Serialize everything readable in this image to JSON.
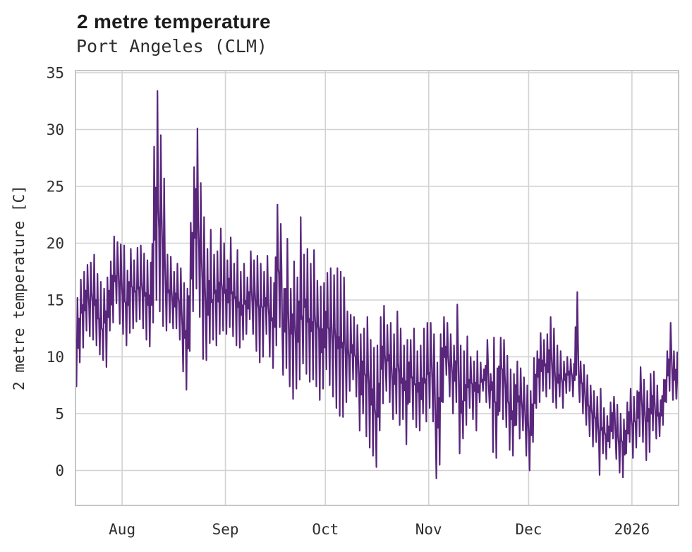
{
  "chart_data": {
    "type": "line",
    "title": "2 metre temperature",
    "subtitle": "Port Angeles (CLM)",
    "ylabel": "2 metre temperature [C]",
    "xlabel": "",
    "y_ticks": [
      0,
      5,
      10,
      15,
      20,
      25,
      30,
      35
    ],
    "x_tick_labels": [
      "Aug",
      "Sep",
      "Oct",
      "Nov",
      "Dec",
      "2026"
    ],
    "x_tick_days": [
      14,
      45,
      75,
      106,
      136,
      167
    ],
    "ylim": [
      -3.1,
      35.2
    ],
    "x_range_days": 181,
    "grid": true,
    "legend": "none",
    "line_color": "#59267c",
    "grid_color": "#d2d2d2",
    "frame_color": "#c7c7c7",
    "text_color": "#2e2e2e",
    "series_note": "hourly 2 m temperature, approximated here by daily min/max envelope, day 0 = mid-July, ticks mark month starts",
    "daily_min": [
      7.4,
      9.5,
      10.8,
      12.3,
      11.8,
      11.5,
      11.0,
      10.2,
      9.7,
      9.1,
      12.3,
      13.0,
      14.7,
      12.9,
      12.0,
      11.0,
      12.1,
      12.5,
      13.1,
      13.3,
      12.5,
      11.5,
      10.9,
      13.0,
      15.0,
      14.0,
      12.7,
      12.3,
      13.0,
      12.5,
      12.5,
      11.5,
      8.7,
      7.1,
      10.5,
      14.0,
      16.0,
      13.5,
      9.8,
      9.7,
      11.2,
      11.5,
      11.0,
      12.0,
      12.3,
      12.0,
      12.6,
      11.8,
      11.0,
      10.8,
      11.5,
      12.0,
      13.3,
      12.0,
      10.5,
      9.5,
      10.0,
      12.0,
      10.0,
      9.0,
      11.0,
      12.6,
      8.4,
      9.0,
      7.4,
      6.3,
      7.2,
      8.0,
      9.4,
      8.5,
      7.8,
      8.0,
      7.4,
      6.2,
      7.2,
      8.9,
      7.5,
      6.5,
      5.5,
      4.8,
      4.7,
      6.0,
      7.0,
      8.0,
      6.5,
      3.5,
      5.0,
      3.0,
      2.0,
      1.3,
      0.3,
      3.5,
      5.9,
      7.0,
      6.0,
      4.5,
      5.0,
      4.0,
      4.5,
      2.3,
      6.0,
      4.5,
      3.8,
      3.5,
      5.0,
      4.3,
      5.5,
      4.3,
      -0.7,
      0.5,
      6.0,
      8.4,
      6.5,
      5.0,
      6.0,
      1.5,
      2.8,
      4.0,
      5.5,
      4.5,
      3.5,
      6.0,
      7.0,
      6.0,
      5.5,
      1.6,
      1.1,
      5.2,
      4.5,
      3.8,
      1.8,
      1.3,
      4.0,
      2.8,
      3.5,
      1.3,
      0.0,
      2.5,
      5.5,
      6.0,
      7.0,
      6.5,
      7.2,
      6.0,
      5.5,
      6.5,
      5.5,
      6.8,
      7.0,
      6.5,
      8.4,
      6.0,
      5.0,
      4.0,
      3.0,
      2.1,
      2.5,
      -0.4,
      1.5,
      1.0,
      2.0,
      2.8,
      1.0,
      -0.2,
      -0.6,
      1.5,
      2.5,
      1.1,
      2.0,
      3.0,
      2.5,
      0.9,
      1.6,
      3.5,
      2.8,
      3.0,
      4.0,
      6.0,
      7.0,
      6.2,
      6.3
    ],
    "daily_max": [
      15.2,
      16.8,
      17.5,
      18.1,
      18.3,
      19.0,
      17.3,
      16.6,
      16.0,
      17.0,
      18.4,
      20.6,
      20.1,
      19.9,
      19.8,
      17.6,
      19.5,
      18.5,
      19.6,
      19.8,
      19.1,
      18.5,
      18.3,
      28.5,
      33.4,
      29.5,
      25.7,
      19.0,
      18.8,
      17.5,
      18.2,
      17.8,
      16.5,
      16.0,
      21.8,
      26.7,
      30.1,
      25.3,
      22.3,
      19.5,
      21.2,
      19.0,
      19.3,
      21.3,
      20.0,
      18.5,
      20.5,
      18.2,
      19.4,
      17.5,
      18.2,
      17.0,
      19.3,
      18.5,
      18.9,
      18.2,
      17.5,
      18.9,
      17.0,
      16.5,
      23.4,
      21.7,
      16.0,
      20.4,
      16.0,
      18.4,
      17.0,
      22.3,
      19.0,
      19.5,
      18.2,
      19.4,
      16.7,
      16.2,
      16.5,
      17.4,
      17.8,
      17.2,
      17.8,
      17.5,
      17.0,
      14.0,
      13.7,
      13.5,
      12.8,
      12.0,
      12.5,
      13.5,
      11.5,
      10.8,
      11.0,
      13.5,
      14.5,
      12.8,
      13.0,
      12.0,
      14.0,
      12.5,
      11.0,
      11.5,
      11.5,
      12.5,
      10.5,
      11.0,
      12.5,
      13.0,
      13.0,
      12.0,
      9.5,
      12.0,
      13.5,
      13.0,
      12.0,
      11.0,
      14.6,
      11.0,
      10.5,
      11.8,
      10.0,
      9.6,
      10.5,
      9.5,
      8.9,
      11.5,
      8.5,
      11.7,
      9.0,
      11.7,
      11.5,
      10.1,
      8.9,
      8.5,
      9.6,
      9.0,
      8.2,
      7.5,
      7.0,
      9.9,
      10.5,
      12.1,
      11.5,
      12.0,
      13.5,
      12.5,
      11.0,
      10.5,
      9.6,
      10.0,
      9.8,
      9.4,
      15.7,
      9.6,
      9.3,
      8.4,
      7.5,
      7.0,
      6.5,
      7.2,
      5.5,
      4.8,
      6.0,
      6.5,
      5.8,
      5.0,
      4.5,
      6.0,
      7.2,
      6.5,
      7.0,
      9.1,
      8.0,
      7.0,
      8.5,
      8.7,
      7.5,
      6.2,
      8.0,
      10.5,
      13.0,
      10.5,
      10.4
    ]
  }
}
